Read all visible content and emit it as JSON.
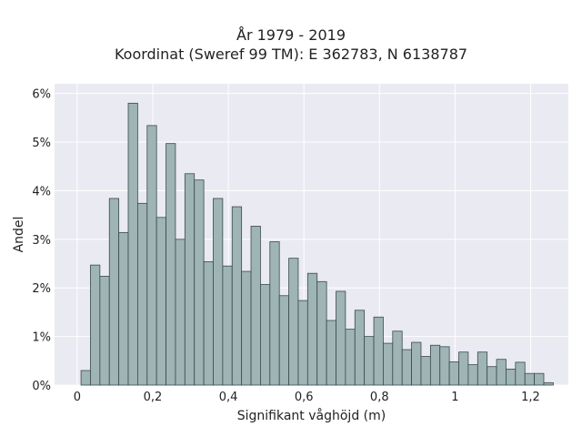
{
  "chart_data": {
    "type": "bar",
    "title": "År 1979 - 2019",
    "subtitle": "Koordinat (Sweref 99 TM): E 362783, N 6138787",
    "xlabel": "Signifikant våghöjd (m)",
    "ylabel": "Andel",
    "xlim": [
      -0.06,
      1.3
    ],
    "ylim": [
      0,
      6.2
    ],
    "x_ticks": [
      0,
      0.2,
      0.4,
      0.6,
      0.8,
      1,
      1.2
    ],
    "x_tick_labels": [
      "0",
      "0,2",
      "0,4",
      "0,6",
      "0,8",
      "1",
      "1,2"
    ],
    "y_ticks": [
      0,
      1,
      2,
      3,
      4,
      5,
      6
    ],
    "y_tick_labels": [
      "0%",
      "1%",
      "2%",
      "3%",
      "4%",
      "5%",
      "6%"
    ],
    "grid": true,
    "bin_start": 0.01,
    "bin_width": 0.025,
    "values": [
      0.3,
      2.47,
      2.24,
      3.84,
      3.14,
      5.8,
      3.74,
      5.34,
      3.45,
      4.97,
      3.0,
      4.35,
      4.22,
      2.54,
      3.84,
      2.45,
      3.67,
      2.34,
      3.27,
      2.07,
      2.95,
      1.84,
      2.61,
      1.74,
      2.3,
      2.13,
      1.33,
      1.93,
      1.15,
      1.54,
      1.0,
      1.4,
      0.86,
      1.11,
      0.73,
      0.88,
      0.59,
      0.82,
      0.79,
      0.48,
      0.68,
      0.42,
      0.68,
      0.38,
      0.53,
      0.33,
      0.47,
      0.24,
      0.24,
      0.05
    ],
    "colors": {
      "bar_fill": "#9fb4b4",
      "bar_stroke": "#3a4a4a",
      "plot_bg": "#eaeaf2",
      "grid": "#ffffff"
    }
  }
}
